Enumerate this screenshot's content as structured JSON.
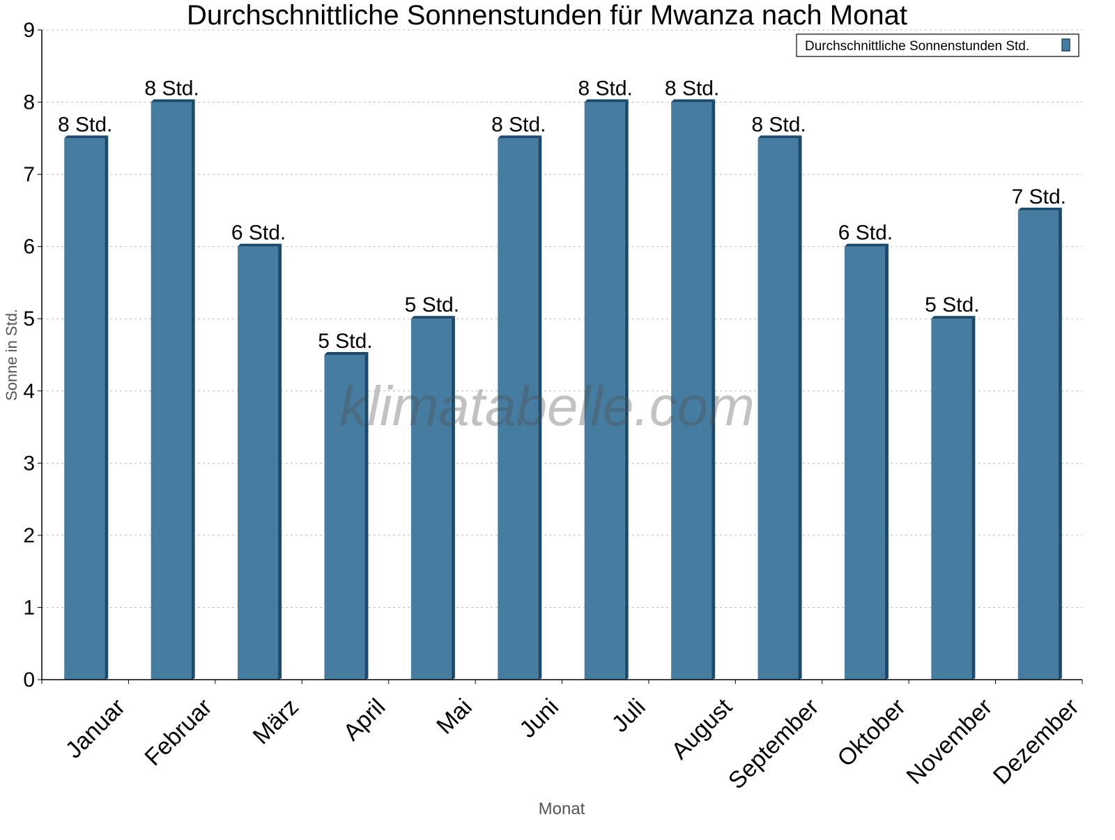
{
  "chart_data": {
    "type": "bar",
    "title": "Durchschnittliche Sonnenstunden für Mwanza nach Monat",
    "xlabel": "Monat",
    "ylabel": "Sonne in Std.",
    "ylim": [
      0,
      9
    ],
    "yticks": [
      "0",
      "1",
      "2",
      "3",
      "4",
      "5",
      "6",
      "7",
      "8",
      "9"
    ],
    "grid": true,
    "legend_position": "top-right",
    "categories": [
      "Januar",
      "Februar",
      "März",
      "April",
      "Mai",
      "Juni",
      "Juli",
      "August",
      "September",
      "Oktober",
      "November",
      "Dezember"
    ],
    "series": [
      {
        "name": "Durchschnittliche Sonnenstunden Std.",
        "values": [
          7.5,
          8,
          6,
          4.5,
          5,
          7.5,
          8,
          8,
          7.5,
          6,
          5,
          6.5
        ],
        "data_labels": [
          "8 Std.",
          "8 Std.",
          "6 Std.",
          "5 Std.",
          "5 Std.",
          "8 Std.",
          "8 Std.",
          "8 Std.",
          "8 Std.",
          "6 Std.",
          "5 Std.",
          "7 Std."
        ],
        "color": "#467c9f",
        "edge_color": "#1a4b6e"
      }
    ],
    "watermark": "klimatabelle.com"
  }
}
